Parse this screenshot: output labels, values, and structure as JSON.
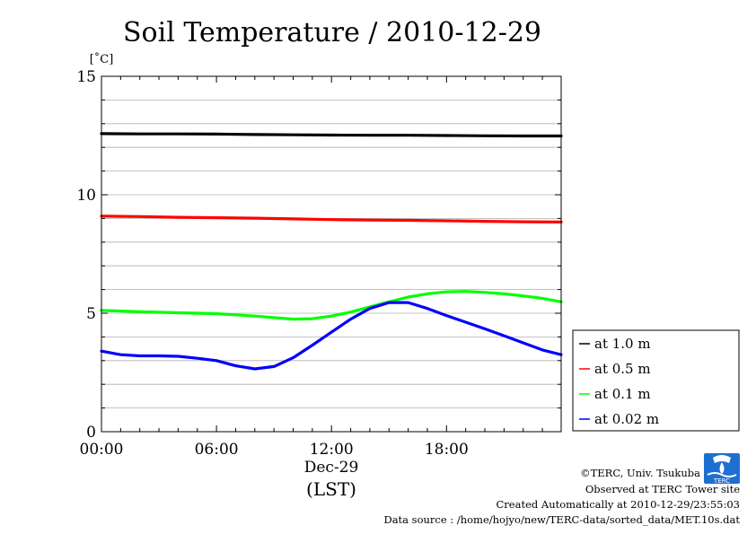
{
  "chart_data": {
    "type": "line",
    "title": "Soil Temperature / 2010-12-29",
    "ylabel": "[˚C]",
    "ylim": [
      0,
      15
    ],
    "yticks": [
      "0",
      "5",
      "10",
      "15"
    ],
    "xlim": [
      0,
      23.98
    ],
    "xticks": [
      "00:00",
      "06:00",
      "12:00",
      "18:00"
    ],
    "date_label": "Dec-29",
    "time_zone": "(LST)",
    "grid": true,
    "legend_position": "right",
    "series": [
      {
        "name": "at 1.0 m",
        "color": "#000000",
        "x": [
          0,
          2,
          4,
          6,
          8,
          10,
          12,
          14,
          16,
          18,
          20,
          22,
          23.98
        ],
        "y": [
          12.58,
          12.57,
          12.57,
          12.56,
          12.54,
          12.53,
          12.52,
          12.51,
          12.51,
          12.5,
          12.49,
          12.48,
          12.48
        ]
      },
      {
        "name": "at 0.5 m",
        "color": "#ff0000",
        "x": [
          0,
          2,
          4,
          6,
          8,
          10,
          12,
          14,
          16,
          18,
          20,
          22,
          23.98
        ],
        "y": [
          9.1,
          9.08,
          9.05,
          9.03,
          9.01,
          8.98,
          8.95,
          8.93,
          8.92,
          8.9,
          8.88,
          8.86,
          8.85
        ]
      },
      {
        "name": "at 0.1 m",
        "color": "#00ff00",
        "x": [
          0,
          2,
          4,
          6,
          8,
          10,
          11,
          12,
          13,
          14,
          15,
          16,
          17,
          18,
          19,
          20,
          21,
          22,
          23,
          23.98
        ],
        "y": [
          5.12,
          5.06,
          5.02,
          4.98,
          4.88,
          4.75,
          4.77,
          4.88,
          5.05,
          5.27,
          5.48,
          5.68,
          5.82,
          5.9,
          5.92,
          5.88,
          5.82,
          5.73,
          5.63,
          5.48
        ]
      },
      {
        "name": "at 0.02 m",
        "color": "#0000ff",
        "x": [
          0,
          1,
          2,
          3,
          4,
          5,
          6,
          7,
          8,
          9,
          10,
          11,
          12,
          13,
          14,
          15,
          16,
          17,
          18,
          19,
          20,
          21,
          22,
          23,
          23.98
        ],
        "y": [
          3.4,
          3.25,
          3.2,
          3.2,
          3.18,
          3.1,
          3.0,
          2.78,
          2.65,
          2.75,
          3.12,
          3.65,
          4.2,
          4.75,
          5.2,
          5.45,
          5.45,
          5.2,
          4.9,
          4.62,
          4.34,
          4.05,
          3.75,
          3.45,
          3.25
        ]
      }
    ]
  },
  "credits": {
    "copyright": "©TERC, Univ. Tsukuba",
    "observed": "Observed at TERC Tower site",
    "created": "Created Automatically at 2010-12-29/23:55:03",
    "source": "Data source : /home/hojyo/new/TERC-data/sorted_data/MET.10s.dat"
  },
  "logo": {
    "text": "TERC",
    "color": "#1e6fd0"
  }
}
